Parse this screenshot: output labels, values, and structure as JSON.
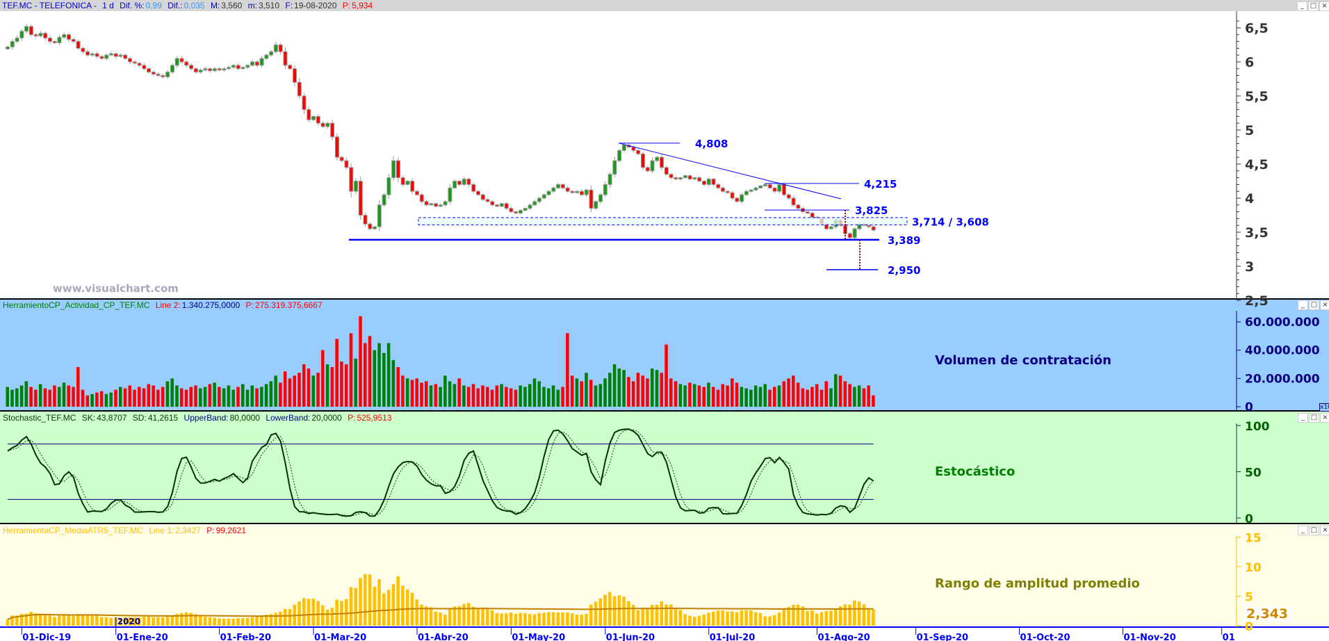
{
  "header": {
    "symbol": "TEF.MC - TELEFONICA -",
    "period": "1 d",
    "dif_pct_label": "Dif. %:",
    "dif_pct": "0,99",
    "dif_label": "Dif.:",
    "dif": "0,035",
    "max_label": "M:",
    "max": "3,560",
    "min_label": "m:",
    "min": "3,510",
    "date_label": "F:",
    "date": "19-08-2020",
    "p_label": "P:",
    "p": "5,934"
  },
  "window_controls": {
    "minimize": "_",
    "maximize": "□",
    "close": "×"
  },
  "watermark": "www.visualchart.com",
  "volume_panel": {
    "name": "HerramientoCP_Actividad_CP_TEF.MC",
    "line_label": "Line 2:",
    "line_value": "1.340.275,0000",
    "p_label": "P:",
    "p_value": "275.319.375,6667",
    "title": "Volumen de contratación",
    "axis_ticks": [
      "60.000.000",
      "40.000.000",
      "20.000.000",
      "0"
    ],
    "multiplier": "x10"
  },
  "stoch_panel": {
    "name": "Stochastic_TEF.MC",
    "sk_label": "SK:",
    "sk": "43,8707",
    "sd_label": "SD:",
    "sd": "41,2615",
    "upper_label": "UpperBand:",
    "upper": "80,0000",
    "lower_label": "LowerBand:",
    "lower": "20,0000",
    "p_label": "P:",
    "p": "525,9513",
    "title": "Estocástico",
    "axis_ticks": [
      "100",
      "50",
      "0"
    ]
  },
  "atr_panel": {
    "name": "HerramientaCP_MediaATR5_TEF.MC",
    "line_label": "Line 1:",
    "line_value": "2,3427",
    "p_label": "P:",
    "p_value": "99,2621",
    "title": "Rango de amplitud promedio",
    "axis_ticks": [
      "15",
      "10",
      "5",
      "0"
    ],
    "last_value": "2,343"
  },
  "price_axis_ticks": [
    "6,5",
    "6",
    "5,5",
    "5",
    "4,5",
    "4",
    "3,5",
    "3",
    "2,5"
  ],
  "time_axis": {
    "year_marker": "2020",
    "ticks": [
      "01-Dic-19",
      "01-Ene-20",
      "01-Feb-20",
      "01-Mar-20",
      "01-Abr-20",
      "01-May-20",
      "01-Jun-20",
      "01-Jul-20",
      "01-Ago-20",
      "01-Sep-20",
      "01-Oct-20",
      "01-Nov-20",
      "01"
    ]
  },
  "annotations": {
    "high": "4,808",
    "resistance": "4,215",
    "level_3825": "3,825",
    "zone": "3,714 / 3,608",
    "support": "3,389",
    "target": "2,950"
  },
  "colors": {
    "up": "#1a9a1a",
    "down": "#ff0000",
    "annotation": "#0000ff",
    "volume_bg": "#99ccff",
    "stoch_bg": "#ccffcc",
    "atr_bg": "#fffde8",
    "atr_bar": "#ffc000"
  },
  "chart_data": {
    "type": "candlestick",
    "symbol": "TEF.MC",
    "ylim": [
      2.5,
      6.6
    ],
    "closes": [
      6.22,
      6.3,
      6.35,
      6.45,
      6.52,
      6.4,
      6.38,
      6.42,
      6.35,
      6.3,
      6.28,
      6.36,
      6.4,
      6.33,
      6.3,
      6.2,
      6.15,
      6.1,
      6.12,
      6.08,
      6.05,
      6.1,
      6.12,
      6.08,
      6.1,
      6.05,
      6.0,
      5.98,
      5.95,
      5.9,
      5.85,
      5.82,
      5.8,
      5.78,
      5.85,
      5.95,
      6.05,
      6.0,
      5.95,
      5.9,
      5.85,
      5.88,
      5.9,
      5.87,
      5.9,
      5.88,
      5.9,
      5.92,
      5.95,
      5.9,
      5.92,
      5.95,
      6.0,
      5.95,
      6.05,
      6.1,
      6.15,
      6.25,
      6.15,
      5.95,
      5.9,
      5.7,
      5.5,
      5.3,
      5.15,
      5.2,
      5.1,
      5.05,
      5.1,
      4.9,
      4.6,
      4.55,
      4.45,
      4.1,
      4.25,
      3.75,
      3.62,
      3.55,
      3.58,
      3.9,
      4.05,
      4.3,
      4.55,
      4.3,
      4.2,
      4.25,
      4.1,
      4.05,
      3.95,
      3.9,
      3.92,
      3.88,
      3.9,
      3.95,
      4.15,
      4.25,
      4.2,
      4.28,
      4.2,
      4.1,
      4.05,
      3.98,
      3.95,
      3.9,
      3.88,
      3.92,
      3.85,
      3.8,
      3.78,
      3.82,
      3.85,
      3.9,
      3.95,
      4.0,
      4.05,
      4.1,
      4.15,
      4.2,
      4.15,
      4.1,
      4.08,
      4.1,
      4.05,
      4.12,
      3.85,
      3.95,
      4.05,
      4.2,
      4.35,
      4.55,
      4.7,
      4.78,
      4.75,
      4.7,
      4.65,
      4.45,
      4.4,
      4.55,
      4.6,
      4.45,
      4.35,
      4.3,
      4.28,
      4.3,
      4.33,
      4.28,
      4.3,
      4.25,
      4.2,
      4.28,
      4.2,
      4.15,
      4.1,
      4.08,
      4.0,
      3.95,
      4.05,
      4.1,
      4.12,
      4.15,
      4.18,
      4.2,
      4.15,
      4.1,
      4.2,
      4.05,
      4.0,
      3.9,
      3.85,
      3.8,
      3.78,
      3.72,
      3.7,
      3.62,
      3.55,
      3.58,
      3.68,
      3.6,
      3.48,
      3.42,
      3.55,
      3.62,
      3.6,
      3.58,
      3.53
    ],
    "volume_millions": [
      14,
      12,
      13,
      15,
      18,
      14,
      12,
      16,
      13,
      12,
      15,
      14,
      17,
      15,
      14,
      28,
      12,
      8,
      9,
      10,
      11,
      9,
      10,
      12,
      14,
      13,
      15,
      12,
      14,
      13,
      16,
      15,
      12,
      14,
      18,
      20,
      15,
      13,
      12,
      14,
      15,
      13,
      14,
      16,
      17,
      14,
      13,
      15,
      12,
      14,
      16,
      12,
      15,
      13,
      14,
      16,
      18,
      22,
      17,
      25,
      20,
      22,
      24,
      30,
      27,
      22,
      24,
      40,
      30,
      28,
      48,
      32,
      30,
      52,
      34,
      64,
      45,
      50,
      40,
      45,
      38,
      45,
      33,
      28,
      22,
      20,
      19,
      20,
      17,
      18,
      15,
      16,
      14,
      22,
      18,
      16,
      20,
      15,
      14,
      16,
      13,
      15,
      14,
      12,
      15,
      16,
      14,
      13,
      12,
      15,
      14,
      16,
      20,
      18,
      14,
      13,
      15,
      12,
      14,
      52,
      22,
      20,
      18,
      24,
      19,
      15,
      16,
      20,
      24,
      30,
      27,
      26,
      21,
      18,
      24,
      22,
      20,
      27,
      26,
      24,
      44,
      20,
      18,
      16,
      15,
      17,
      16,
      15,
      14,
      17,
      14,
      12,
      16,
      15,
      20,
      17,
      14,
      13,
      12,
      15,
      14,
      16,
      12,
      14,
      15,
      18,
      20,
      22,
      17,
      13,
      12,
      14,
      16,
      12,
      18,
      13,
      23,
      22,
      18,
      16,
      14,
      15,
      13,
      15,
      8
    ],
    "levels": {
      "high": 4.808,
      "resistance": 4.215,
      "level": 3.825,
      "zone": [
        3.608,
        3.714
      ],
      "support": 3.389,
      "target": 2.95
    },
    "stochastic": {
      "upper_band": 80,
      "lower_band": 20,
      "ylim": [
        0,
        100
      ]
    },
    "atr": {
      "ylim": [
        0,
        15
      ]
    }
  }
}
